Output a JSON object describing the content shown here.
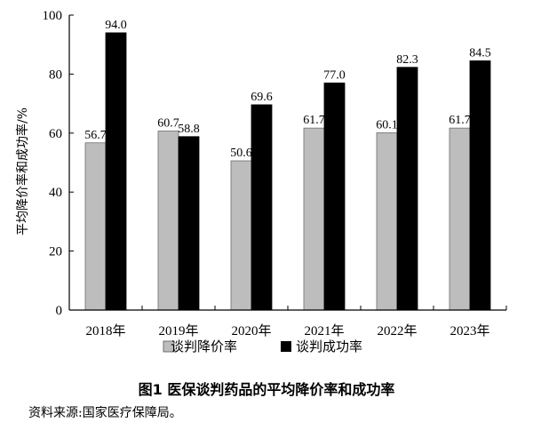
{
  "chart_data": {
    "type": "bar",
    "title": "图1 医保谈判药品的平均降价率和成功率",
    "source": "资料来源:国家医疗保障局。",
    "ylabel": "平均降价率和成功率/%",
    "xlabel": "",
    "ylim": [
      0,
      100
    ],
    "yticks": [
      0,
      20,
      40,
      60,
      80,
      100
    ],
    "categories": [
      "2018年",
      "2019年",
      "2020年",
      "2021年",
      "2022年",
      "2023年"
    ],
    "series": [
      {
        "name": "谈判降价率",
        "values": [
          56.7,
          60.7,
          50.6,
          61.7,
          60.1,
          61.7
        ],
        "color": "#bdbdbd"
      },
      {
        "name": "谈判成功率",
        "values": [
          94.0,
          58.8,
          69.6,
          77.0,
          82.3,
          84.5
        ],
        "color": "#000000"
      }
    ],
    "legend_position": "bottom"
  }
}
